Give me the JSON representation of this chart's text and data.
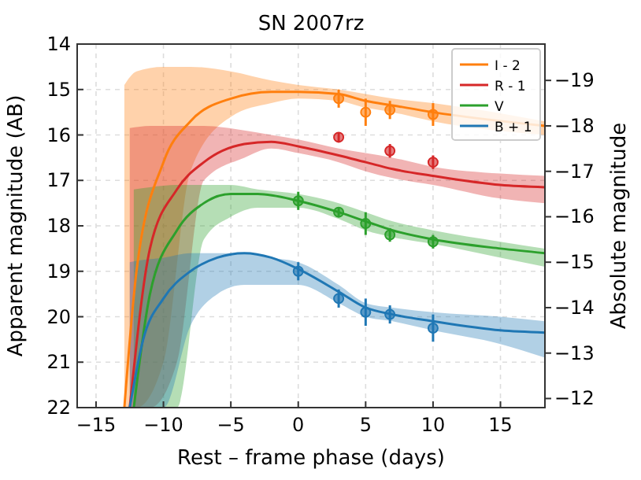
{
  "chart_data": {
    "type": "line",
    "title": "SN 2007rz",
    "xlabel": "Rest – frame phase (days)",
    "ylabel": "Apparent magnitude (AB)",
    "y2label": "Absolute magnitude",
    "xlim": [
      -16.4,
      18.3
    ],
    "xticks": [
      {
        "value": -15,
        "label": "−15"
      },
      {
        "value": -10,
        "label": "−10"
      },
      {
        "value": -5,
        "label": "−5"
      },
      0,
      5,
      10,
      15
    ],
    "ylim": [
      22,
      14
    ],
    "yticks": [
      14,
      15,
      16,
      17,
      18,
      19,
      20,
      21,
      22
    ],
    "y2lim": [
      -11.8,
      -19.8
    ],
    "y2ticks": [
      {
        "value": -12,
        "label": "−12"
      },
      {
        "value": -13,
        "label": "−13"
      },
      {
        "value": -14,
        "label": "−14"
      },
      {
        "value": -15,
        "label": "−15"
      },
      {
        "value": -16,
        "label": "−16"
      },
      {
        "value": -17,
        "label": "−17"
      },
      {
        "value": -18,
        "label": "−18"
      },
      {
        "value": -19,
        "label": "−19"
      }
    ],
    "grid": true,
    "legend": "top right",
    "line_style": "solid",
    "series": [
      {
        "name": "I - 2",
        "color": "#ff7f0e",
        "marker": "none",
        "x": [
          -12.9,
          -12,
          -10,
          -8,
          -5,
          -2,
          0,
          3,
          5,
          7,
          10,
          18.3
        ],
        "values": [
          22,
          19,
          16.6,
          15.7,
          15.2,
          15.05,
          15.05,
          15.1,
          15.25,
          15.35,
          15.5,
          15.8
        ],
        "upper": [
          22,
          22,
          21,
          16.8,
          15.6,
          15.3,
          15.2,
          15.25,
          15.4,
          15.5,
          15.7,
          16
        ],
        "lower": [
          14.9,
          14.6,
          14.5,
          14.5,
          14.6,
          14.8,
          14.9,
          15,
          15.1,
          15.2,
          15.3,
          15.7
        ]
      },
      {
        "name": "R - 1",
        "color": "#d62728",
        "marker": "none",
        "x": [
          -12.5,
          -11,
          -9,
          -7,
          -4,
          -2,
          0,
          3,
          5,
          7,
          10,
          15,
          18.3
        ],
        "values": [
          22,
          18.5,
          17.2,
          16.6,
          16.2,
          16.15,
          16.25,
          16.45,
          16.6,
          16.75,
          16.9,
          17.1,
          17.15
        ],
        "upper": [
          22,
          22,
          21,
          17,
          16.5,
          16.3,
          16.4,
          16.6,
          16.8,
          16.95,
          17.1,
          17.4,
          17.5
        ],
        "lower": [
          15.85,
          15.8,
          15.8,
          15.8,
          15.9,
          16,
          16.1,
          16.3,
          16.4,
          16.5,
          16.7,
          16.85,
          16.9
        ]
      },
      {
        "name": "V",
        "color": "#2ca02c",
        "marker": "none",
        "x": [
          -12.2,
          -11,
          -9,
          -7,
          -5,
          -3,
          0,
          3,
          5,
          7,
          10,
          15,
          18.3
        ],
        "values": [
          22,
          19.5,
          18.1,
          17.5,
          17.3,
          17.3,
          17.45,
          17.7,
          17.9,
          18.1,
          18.3,
          18.5,
          18.6
        ],
        "upper": [
          22,
          22,
          22,
          18.3,
          17.8,
          17.6,
          17.6,
          17.85,
          18.1,
          18.25,
          18.4,
          18.7,
          18.9
        ],
        "lower": [
          17.2,
          17.15,
          17.1,
          17.1,
          17.1,
          17.2,
          17.3,
          17.5,
          17.7,
          17.9,
          18.1,
          18.35,
          18.5
        ]
      },
      {
        "name": "B + 1",
        "color": "#1f77b4",
        "marker": "none",
        "x": [
          -12.5,
          -11.5,
          -10,
          -8,
          -6,
          -4,
          -2,
          0,
          3,
          5,
          7,
          10,
          15,
          18.3
        ],
        "values": [
          22,
          20.5,
          19.6,
          19,
          18.7,
          18.6,
          18.7,
          18.95,
          19.45,
          19.8,
          19.95,
          20.1,
          20.3,
          20.35
        ],
        "upper": [
          22,
          22,
          22,
          20.2,
          19.5,
          19.3,
          19.3,
          19.3,
          19.7,
          20,
          20.1,
          20.3,
          20.6,
          20.9
        ],
        "lower": [
          18.8,
          18.75,
          18.7,
          18.6,
          18.6,
          18.6,
          18.7,
          18.8,
          19.3,
          19.7,
          19.8,
          19.9,
          20,
          20.1
        ]
      },
      {
        "type": "scatter",
        "marker": "circle",
        "color": "#ff7f0e",
        "x": [
          3,
          5,
          6.8,
          10
        ],
        "values": [
          15.2,
          15.5,
          15.45,
          15.55
        ],
        "errors": [
          0.2,
          0.3,
          0.2,
          0.25
        ]
      },
      {
        "type": "scatter",
        "marker": "circle",
        "color": "#d62728",
        "x": [
          3,
          6.8,
          10
        ],
        "values": [
          16.05,
          16.35,
          16.6
        ],
        "errors": [
          0.1,
          0.15,
          0.15
        ]
      },
      {
        "type": "scatter",
        "marker": "circle",
        "color": "#2ca02c",
        "x": [
          0,
          3,
          5,
          6.8,
          10
        ],
        "values": [
          17.45,
          17.7,
          17.95,
          18.2,
          18.35
        ],
        "errors": [
          0.2,
          0.1,
          0.25,
          0.15,
          0.15
        ]
      },
      {
        "type": "scatter",
        "marker": "circle",
        "color": "#1f77b4",
        "x": [
          0,
          3,
          5,
          6.8,
          10
        ],
        "values": [
          19,
          19.6,
          19.9,
          19.95,
          20.25
        ],
        "errors": [
          0.2,
          0.2,
          0.3,
          0.2,
          0.3
        ]
      }
    ]
  }
}
